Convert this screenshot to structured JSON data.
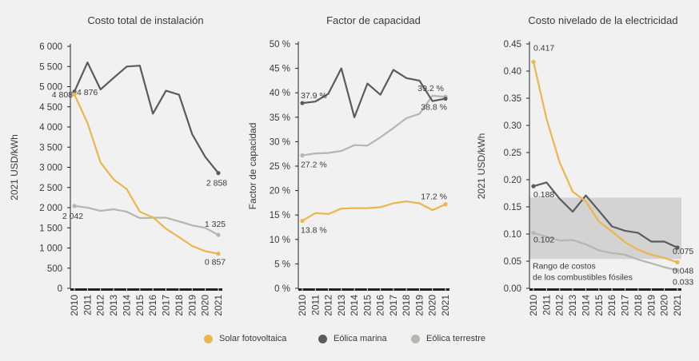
{
  "colors": {
    "solar": "#ecb64c",
    "offshore": "#5a5b5e",
    "onshore": "#b5b6ac",
    "band": "#d3d3d3",
    "axis": "#222222"
  },
  "legend": [
    {
      "label": "Solar fotovoltaica",
      "series": "solar"
    },
    {
      "label": "Eólica marina",
      "series": "offshore"
    },
    {
      "label": "Eólica terrestre",
      "series": "onshore"
    }
  ],
  "chart_data": [
    {
      "type": "line",
      "title": "Costo total de instalación",
      "ylabel": "2021 USD/kWh",
      "ylim": [
        0,
        6000
      ],
      "yticks": [
        0,
        500,
        1000,
        1500,
        2000,
        2500,
        3000,
        3500,
        4000,
        4500,
        5000,
        5500,
        6000
      ],
      "ytick_labels": [
        "0",
        "500",
        "1 000",
        "1 500",
        "2 000",
        "2 500",
        "3 000",
        "3 500",
        "4 000",
        "4 500",
        "5 000",
        "5 500",
        "6 000"
      ],
      "x": [
        "2010",
        "2011",
        "2012",
        "2013",
        "2014",
        "2015",
        "2016",
        "2017",
        "2018",
        "2019",
        "2020",
        "2021"
      ],
      "series": [
        {
          "key": "solar",
          "values": [
            4808,
            4100,
            3120,
            2700,
            2460,
            1900,
            1760,
            1480,
            1270,
            1050,
            920,
            857
          ]
        },
        {
          "key": "offshore",
          "values": [
            4876,
            5600,
            4930,
            5220,
            5500,
            5520,
            4330,
            4900,
            4800,
            3820,
            3260,
            2858
          ]
        },
        {
          "key": "onshore",
          "values": [
            2042,
            2000,
            1920,
            1960,
            1900,
            1740,
            1750,
            1750,
            1660,
            1560,
            1500,
            1325
          ]
        }
      ],
      "annotations": [
        {
          "text": "4 808",
          "x": "2010",
          "y": 4808,
          "series": "solar"
        },
        {
          "text": "4 876",
          "x": "2010",
          "y": 4876,
          "series": "offshore"
        },
        {
          "text": "2 858",
          "x": "2021",
          "y": 2858,
          "series": "offshore"
        },
        {
          "text": "2 042",
          "x": "2010",
          "y": 2042,
          "series": "onshore"
        },
        {
          "text": "1 325",
          "x": "2021",
          "y": 1325,
          "series": "onshore"
        },
        {
          "text": "0 857",
          "x": "2021",
          "y": 857,
          "series": "solar"
        }
      ]
    },
    {
      "type": "line",
      "title": "Factor de capacidad",
      "ylabel": "Factor de capacidad",
      "ylim": [
        0,
        50
      ],
      "yticks": [
        0,
        5,
        10,
        15,
        20,
        25,
        30,
        35,
        40,
        45,
        50
      ],
      "ytick_labels": [
        "0 %",
        "5 %",
        "10 %",
        "15 %",
        "20 %",
        "25 %",
        "30 %",
        "35 %",
        "40 %",
        "45 %",
        "50 %"
      ],
      "x": [
        "2010",
        "2011",
        "2012",
        "2013",
        "2014",
        "2015",
        "2016",
        "2017",
        "2018",
        "2019",
        "2020",
        "2021"
      ],
      "series": [
        {
          "key": "solar",
          "values": [
            13.8,
            15.4,
            15.2,
            16.3,
            16.4,
            16.4,
            16.6,
            17.4,
            17.8,
            17.4,
            16.0,
            17.2
          ]
        },
        {
          "key": "offshore",
          "values": [
            37.9,
            38.2,
            39.8,
            45.0,
            35.0,
            41.9,
            39.6,
            44.7,
            43.0,
            42.5,
            38.3,
            38.8
          ]
        },
        {
          "key": "onshore",
          "values": [
            27.2,
            27.6,
            27.7,
            28.1,
            29.3,
            29.2,
            30.9,
            32.8,
            34.8,
            35.7,
            39.4,
            39.2
          ]
        }
      ],
      "annotations": [
        {
          "text": "37.9 %",
          "x": "2010",
          "y": 37.9,
          "series": "offshore"
        },
        {
          "text": "27.2 %",
          "x": "2010",
          "y": 27.2,
          "series": "onshore"
        },
        {
          "text": "13.8 %",
          "x": "2010",
          "y": 13.8,
          "series": "solar"
        },
        {
          "text": "39.2 %",
          "x": "2021",
          "y": 39.2,
          "series": "onshore"
        },
        {
          "text": "38.8 %",
          "x": "2021",
          "y": 38.8,
          "series": "offshore"
        },
        {
          "text": "17.2 %",
          "x": "2021",
          "y": 17.2,
          "series": "solar"
        }
      ]
    },
    {
      "type": "line",
      "title": "Costo nivelado de la electricidad",
      "ylabel": "2021 USD/kWh",
      "ylim": [
        0,
        0.45
      ],
      "yticks": [
        0,
        0.05,
        0.1,
        0.15,
        0.2,
        0.25,
        0.3,
        0.35,
        0.4,
        0.45
      ],
      "ytick_labels": [
        "0.00",
        "0.05",
        "0.10",
        "0.15",
        "0.20",
        "0.25",
        "0.30",
        "0.35",
        "0.40",
        "0.45"
      ],
      "x": [
        "2010",
        "2011",
        "2012",
        "2013",
        "2014",
        "2015",
        "2016",
        "2017",
        "2018",
        "2019",
        "2020",
        "2021"
      ],
      "band": {
        "y0": 0.054,
        "y1": 0.167,
        "label_lines": [
          "Rango de costos",
          "de los combustibles fósiles"
        ]
      },
      "series": [
        {
          "key": "solar",
          "values": [
            0.417,
            0.312,
            0.232,
            0.178,
            0.16,
            0.123,
            0.105,
            0.085,
            0.071,
            0.062,
            0.056,
            0.048
          ]
        },
        {
          "key": "offshore",
          "values": [
            0.188,
            0.195,
            0.165,
            0.141,
            0.171,
            0.143,
            0.114,
            0.106,
            0.102,
            0.086,
            0.086,
            0.075
          ]
        },
        {
          "key": "onshore",
          "values": [
            0.102,
            0.095,
            0.088,
            0.089,
            0.081,
            0.07,
            0.065,
            0.062,
            0.053,
            0.046,
            0.039,
            0.033
          ]
        }
      ],
      "annotations": [
        {
          "text": "0.417",
          "x": "2010",
          "y": 0.417,
          "series": "solar"
        },
        {
          "text": "0.188",
          "x": "2010",
          "y": 0.188,
          "series": "offshore"
        },
        {
          "text": "0.102",
          "x": "2010",
          "y": 0.102,
          "series": "onshore"
        },
        {
          "text": "0.075",
          "x": "2021",
          "y": 0.075,
          "series": "offshore"
        },
        {
          "text": "0.048",
          "x": "2021",
          "y": 0.048,
          "series": "solar"
        },
        {
          "text": "0.033",
          "x": "2021",
          "y": 0.033,
          "series": "onshore"
        }
      ]
    }
  ]
}
